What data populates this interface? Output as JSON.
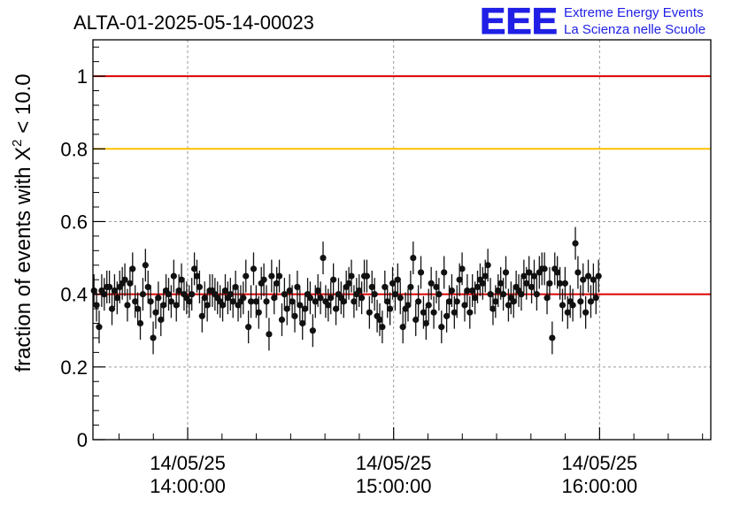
{
  "chart_data": {
    "type": "scatter",
    "title": "ALTA-01-2025-05-14-00023",
    "ylabel": "fraction of events with χ² < 10.0",
    "ylabel_parts": {
      "prefix": "fraction of events with ",
      "chi": "Χ",
      "sup": "2",
      "suffix": " < 10.0"
    },
    "xlabel": "",
    "ylim": [
      0,
      1.1
    ],
    "xlim_hours": [
      13.54,
      16.54
    ],
    "y_ticks": [
      {
        "value": 0,
        "label": "0"
      },
      {
        "value": 0.2,
        "label": "0.2"
      },
      {
        "value": 0.4,
        "label": "0.4"
      },
      {
        "value": 0.6,
        "label": "0.6"
      },
      {
        "value": 0.8,
        "label": "0.8"
      },
      {
        "value": 1,
        "label": "1"
      }
    ],
    "x_ticks": [
      {
        "value": 14,
        "date": "14/05/25",
        "time": "14:00:00"
      },
      {
        "value": 15,
        "date": "14/05/25",
        "time": "15:00:00"
      },
      {
        "value": 16,
        "date": "14/05/25",
        "time": "16:00:00"
      }
    ],
    "reference_lines": [
      {
        "y": 1.0,
        "color": "#dd0000"
      },
      {
        "y": 0.8,
        "color": "#ffc000"
      },
      {
        "y": 0.4,
        "color": "#dd0000"
      }
    ],
    "series": [
      {
        "name": "fraction",
        "x_start": 13.545,
        "x_step": 0.0125,
        "error": 0.045,
        "values": [
          0.41,
          0.37,
          0.31,
          0.41,
          0.4,
          0.42,
          0.42,
          0.36,
          0.41,
          0.39,
          0.42,
          0.43,
          0.44,
          0.37,
          0.43,
          0.47,
          0.38,
          0.36,
          0.32,
          0.4,
          0.48,
          0.42,
          0.38,
          0.28,
          0.35,
          0.39,
          0.33,
          0.37,
          0.41,
          0.4,
          0.38,
          0.45,
          0.37,
          0.41,
          0.44,
          0.4,
          0.39,
          0.38,
          0.4,
          0.47,
          0.45,
          0.42,
          0.34,
          0.39,
          0.37,
          0.41,
          0.41,
          0.4,
          0.39,
          0.38,
          0.37,
          0.41,
          0.39,
          0.4,
          0.38,
          0.42,
          0.37,
          0.38,
          0.39,
          0.45,
          0.31,
          0.38,
          0.47,
          0.38,
          0.35,
          0.43,
          0.44,
          0.38,
          0.29,
          0.45,
          0.39,
          0.43,
          0.45,
          0.33,
          0.4,
          0.36,
          0.41,
          0.38,
          0.34,
          0.42,
          0.37,
          0.32,
          0.36,
          0.4,
          0.39,
          0.3,
          0.38,
          0.41,
          0.39,
          0.5,
          0.38,
          0.37,
          0.39,
          0.44,
          0.36,
          0.4,
          0.39,
          0.38,
          0.42,
          0.43,
          0.45,
          0.38,
          0.4,
          0.41,
          0.39,
          0.45,
          0.45,
          0.35,
          0.42,
          0.4,
          0.34,
          0.33,
          0.31,
          0.42,
          0.38,
          0.36,
          0.43,
          0.4,
          0.44,
          0.39,
          0.31,
          0.36,
          0.37,
          0.42,
          0.5,
          0.33,
          0.38,
          0.46,
          0.35,
          0.32,
          0.37,
          0.43,
          0.35,
          0.42,
          0.4,
          0.31,
          0.46,
          0.34,
          0.38,
          0.41,
          0.35,
          0.38,
          0.44,
          0.47,
          0.37,
          0.41,
          0.35,
          0.41,
          0.39,
          0.42,
          0.44,
          0.43,
          0.45,
          0.48,
          0.4,
          0.36,
          0.38,
          0.41,
          0.43,
          0.4,
          0.46,
          0.37,
          0.39,
          0.38,
          0.42,
          0.41,
          0.4,
          0.45,
          0.43,
          0.46,
          0.42,
          0.45,
          0.4,
          0.46,
          0.47,
          0.47,
          0.39,
          0.43,
          0.28,
          0.47,
          0.46,
          0.43,
          0.37,
          0.43,
          0.35,
          0.38,
          0.37,
          0.54,
          0.46,
          0.38,
          0.44,
          0.35,
          0.45,
          0.38,
          0.44,
          0.39,
          0.45
        ]
      }
    ]
  },
  "branding": {
    "logo_text": "EEE",
    "line1": "Extreme Energy Events",
    "line2": "La Scienza nelle Scuole",
    "color": "#1f1fe6"
  },
  "colors": {
    "marker": "#111111",
    "grid": "#9a9a9a",
    "axis": "#000000"
  }
}
